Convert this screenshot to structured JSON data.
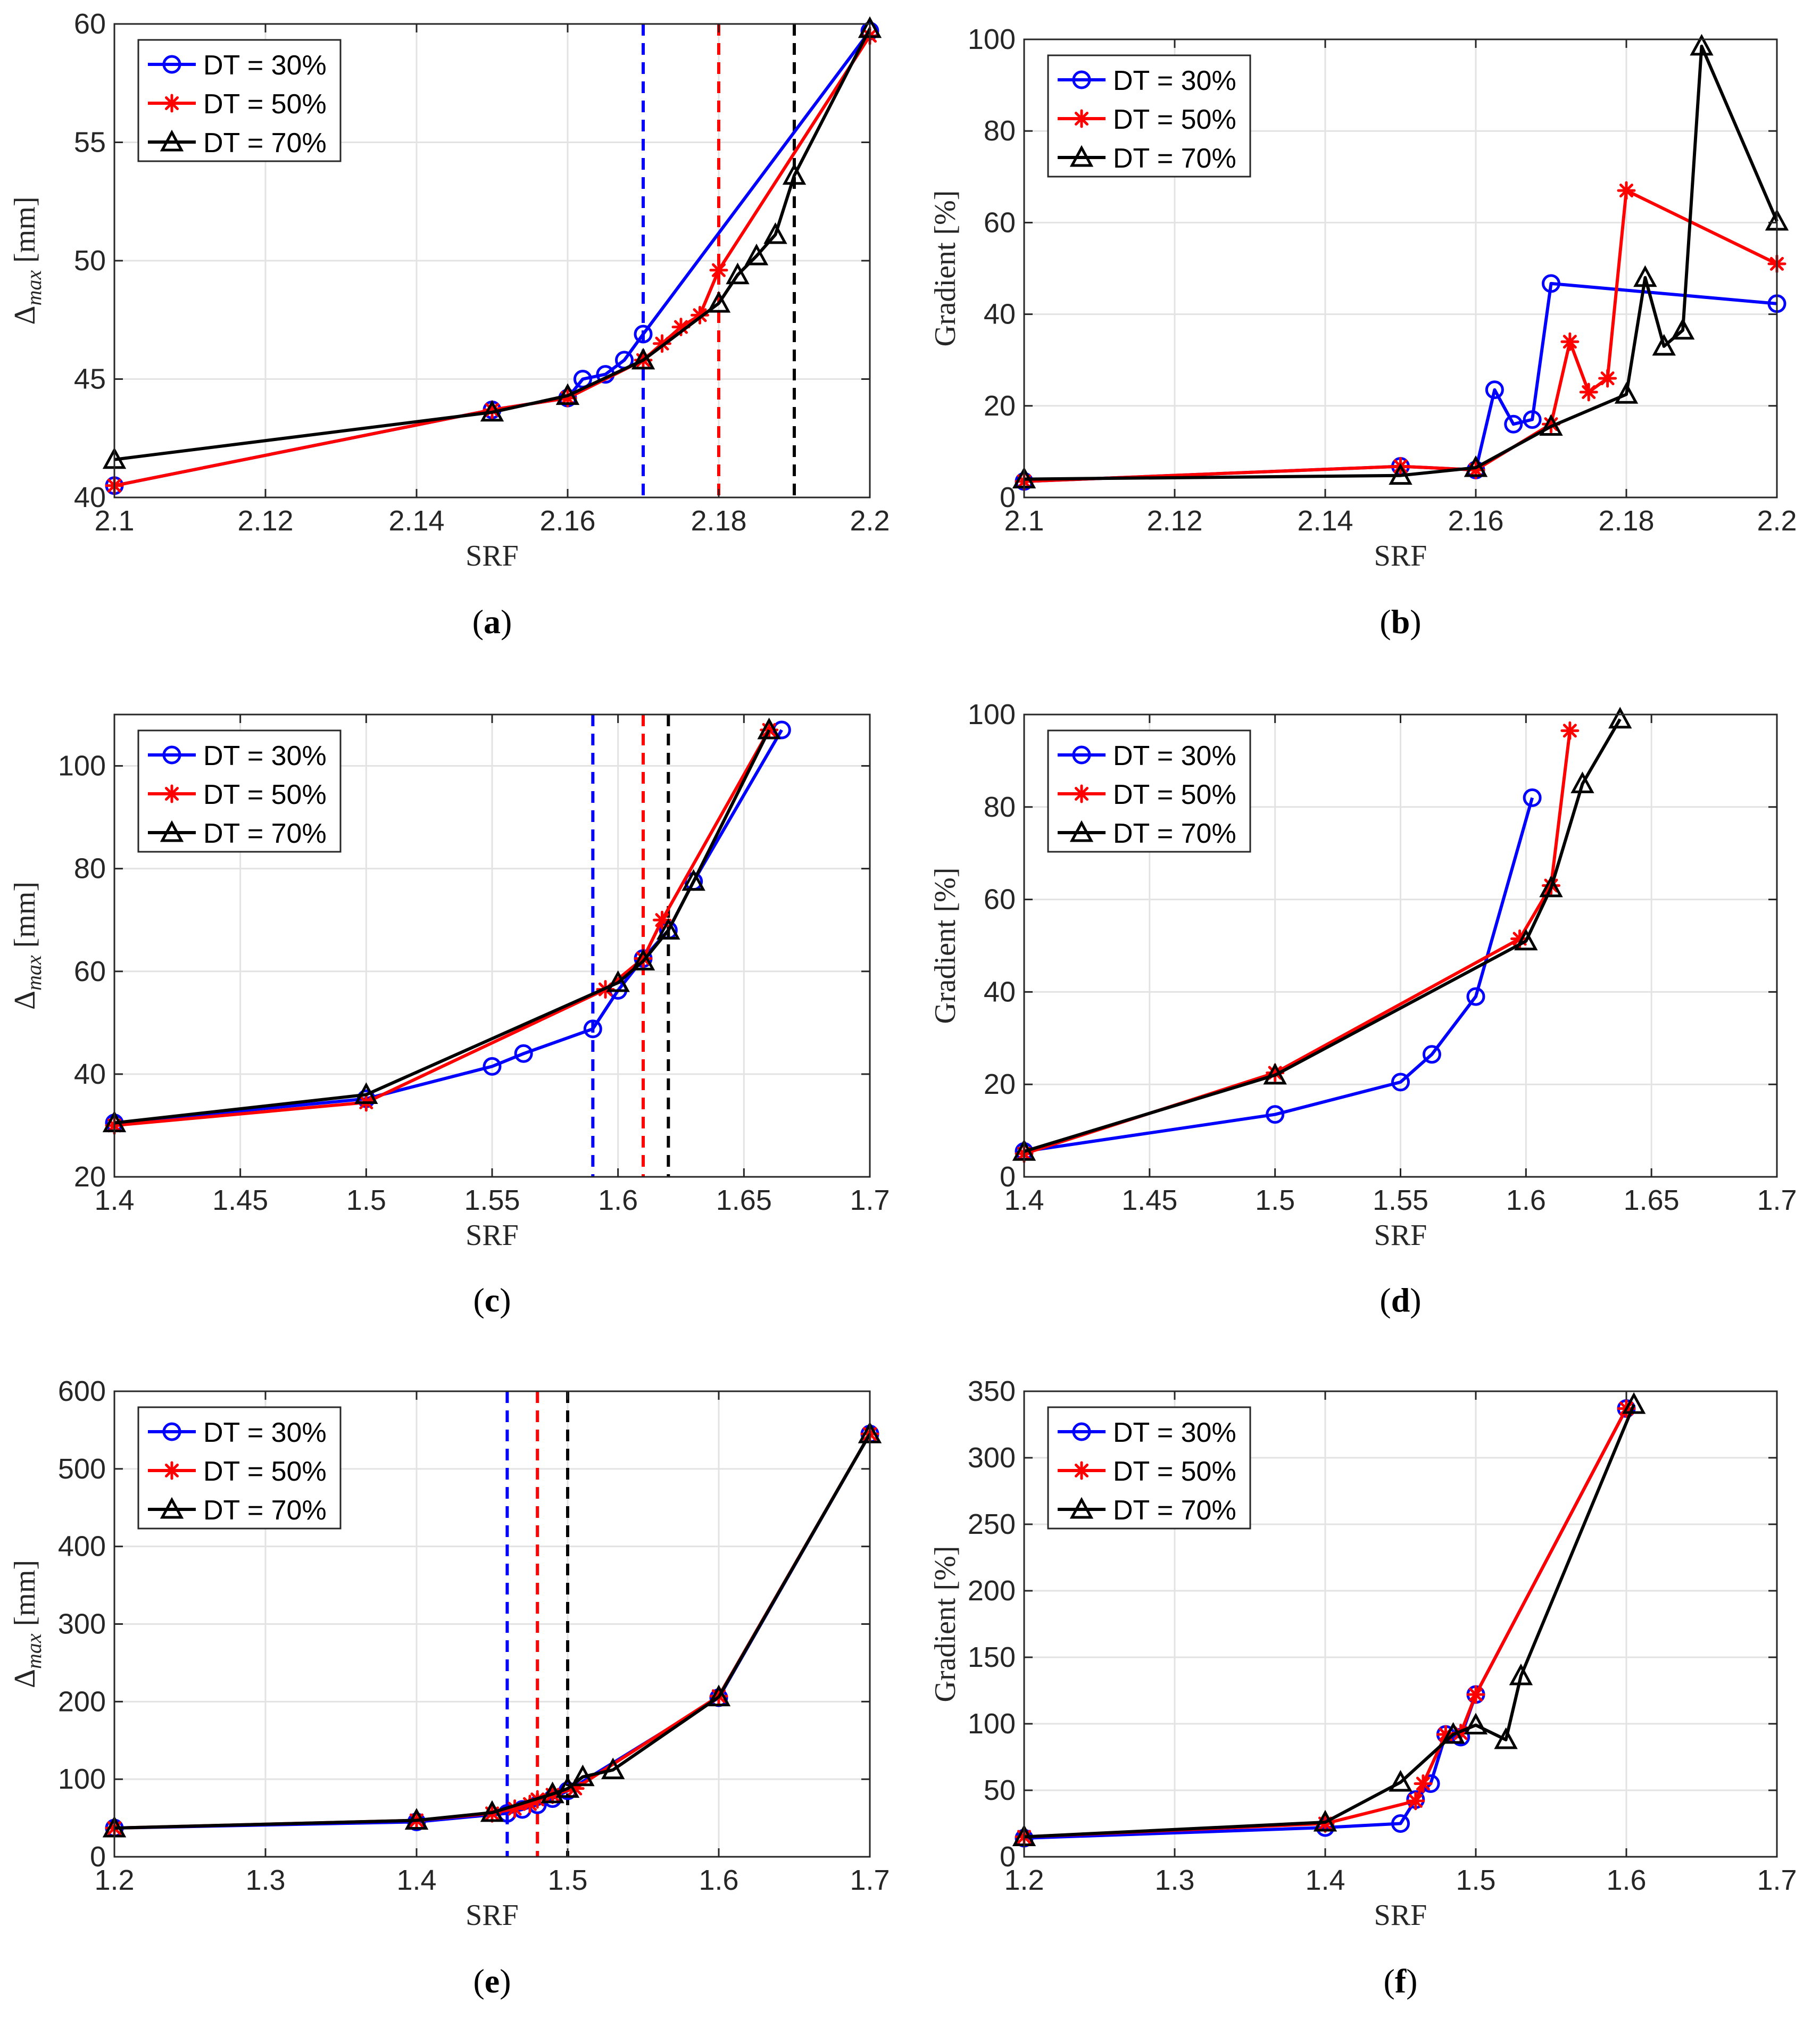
{
  "chart_data": [
    {
      "panel": "(a)",
      "type": "line",
      "xlabel": "SRF",
      "ylabel": "Δmax [mm]",
      "ylabel_main": "Δ",
      "ylabel_sub": "max",
      "ylabel_unit": " [mm]",
      "xlim": [
        2.1,
        2.2
      ],
      "ylim": [
        40,
        60
      ],
      "xticks": [
        "2.1",
        "2.12",
        "2.14",
        "2.16",
        "2.18",
        "2.2"
      ],
      "xtick_values": [
        2.1,
        2.12,
        2.14,
        2.16,
        2.18,
        2.2
      ],
      "yticks": [
        "40",
        "45",
        "50",
        "55",
        "60"
      ],
      "ytick_values": [
        40,
        45,
        50,
        55,
        60
      ],
      "legend": [
        "DT = 30%",
        "DT = 50%",
        "DT = 70%"
      ],
      "legend_position": "top-left",
      "vlines": [
        {
          "x": 2.17,
          "color": "#0000ff"
        },
        {
          "x": 2.18,
          "color": "#ff0000"
        },
        {
          "x": 2.19,
          "color": "#000000"
        }
      ],
      "series": [
        {
          "name": "DT = 30%",
          "color": "#0000ff",
          "marker": "circle",
          "x": [
            2.1,
            2.15,
            2.16,
            2.162,
            2.165,
            2.1675,
            2.17,
            2.2
          ],
          "y": [
            40.5,
            43.7,
            44.2,
            45.0,
            45.2,
            45.8,
            46.9,
            59.7
          ]
        },
        {
          "name": "DT = 50%",
          "color": "#ff0000",
          "marker": "asterisk",
          "x": [
            2.1,
            2.15,
            2.16,
            2.17,
            2.1725,
            2.175,
            2.1775,
            2.18,
            2.2
          ],
          "y": [
            40.5,
            43.7,
            44.2,
            45.8,
            46.5,
            47.2,
            47.7,
            49.6,
            59.5
          ]
        },
        {
          "name": "DT = 70%",
          "color": "#000000",
          "marker": "triangle",
          "x": [
            2.1,
            2.15,
            2.16,
            2.17,
            2.18,
            2.1825,
            2.185,
            2.1875,
            2.19,
            2.2
          ],
          "y": [
            41.6,
            43.6,
            44.3,
            45.8,
            48.2,
            49.4,
            50.2,
            51.1,
            53.6,
            59.8
          ]
        }
      ]
    },
    {
      "panel": "(b)",
      "type": "line",
      "xlabel": "SRF",
      "ylabel": "Gradient [%]",
      "xlim": [
        2.1,
        2.2
      ],
      "ylim": [
        0,
        100
      ],
      "xticks": [
        "2.1",
        "2.12",
        "2.14",
        "2.16",
        "2.18",
        "2.2"
      ],
      "xtick_values": [
        2.1,
        2.12,
        2.14,
        2.16,
        2.18,
        2.2
      ],
      "yticks": [
        "0",
        "20",
        "40",
        "60",
        "80",
        "100"
      ],
      "ytick_values": [
        0,
        20,
        40,
        60,
        80,
        100
      ],
      "legend": [
        "DT = 30%",
        "DT = 50%",
        "DT = 70%"
      ],
      "legend_position": "top-left",
      "vlines": [],
      "series": [
        {
          "name": "DT = 30%",
          "color": "#0000ff",
          "marker": "circle",
          "x": [
            2.1,
            2.15,
            2.16,
            2.1625,
            2.165,
            2.1675,
            2.17,
            2.2
          ],
          "y": [
            3.5,
            6.8,
            6.0,
            23.5,
            16.0,
            17.0,
            46.7,
            42.3
          ]
        },
        {
          "name": "DT = 50%",
          "color": "#ff0000",
          "marker": "asterisk",
          "x": [
            2.1,
            2.15,
            2.16,
            2.17,
            2.1725,
            2.175,
            2.1775,
            2.18,
            2.2
          ],
          "y": [
            3.5,
            6.8,
            6.0,
            16.0,
            34.0,
            23.0,
            26.0,
            67.0,
            51.0
          ]
        },
        {
          "name": "DT = 70%",
          "color": "#000000",
          "marker": "triangle",
          "x": [
            2.1,
            2.15,
            2.16,
            2.17,
            2.18,
            2.1825,
            2.185,
            2.1875,
            2.19,
            2.2
          ],
          "y": [
            4.0,
            4.8,
            6.5,
            15.5,
            22.5,
            48.0,
            33.0,
            36.5,
            98.5,
            60.3
          ]
        }
      ]
    },
    {
      "panel": "(c)",
      "type": "line",
      "xlabel": "SRF",
      "ylabel": "Δmax [mm]",
      "ylabel_main": "Δ",
      "ylabel_sub": "max",
      "ylabel_unit": " [mm]",
      "xlim": [
        1.4,
        1.7
      ],
      "ylim": [
        20,
        110
      ],
      "xticks": [
        "1.4",
        "1.45",
        "1.5",
        "1.55",
        "1.6",
        "1.65",
        "1.7"
      ],
      "xtick_values": [
        1.4,
        1.45,
        1.5,
        1.55,
        1.6,
        1.65,
        1.7
      ],
      "yticks": [
        "20",
        "40",
        "60",
        "80",
        "100"
      ],
      "ytick_values": [
        20,
        40,
        60,
        80,
        100
      ],
      "legend": [
        "DT = 30%",
        "DT = 50%",
        "DT = 70%"
      ],
      "legend_position": "top-left",
      "vlines": [
        {
          "x": 1.59,
          "color": "#0000ff"
        },
        {
          "x": 1.61,
          "color": "#ff0000"
        },
        {
          "x": 1.62,
          "color": "#000000"
        }
      ],
      "series": [
        {
          "name": "DT = 30%",
          "color": "#0000ff",
          "marker": "circle",
          "x": [
            1.4,
            1.5,
            1.55,
            1.5625,
            1.59,
            1.6,
            1.61,
            1.62,
            1.63,
            1.665
          ],
          "y": [
            30.5,
            35.2,
            41.5,
            44.0,
            48.8,
            56.3,
            62.5,
            68.0,
            77.5,
            107.0
          ]
        },
        {
          "name": "DT = 50%",
          "color": "#ff0000",
          "marker": "asterisk",
          "x": [
            1.4,
            1.5,
            1.595,
            1.61,
            1.6175,
            1.66
          ],
          "y": [
            30.0,
            34.5,
            56.5,
            62.5,
            70.0,
            107.0
          ]
        },
        {
          "name": "DT = 70%",
          "color": "#000000",
          "marker": "triangle",
          "x": [
            1.4,
            1.5,
            1.6,
            1.61,
            1.62,
            1.63,
            1.66
          ],
          "y": [
            30.5,
            36.0,
            57.8,
            62.0,
            68.0,
            77.5,
            107.0
          ]
        }
      ]
    },
    {
      "panel": "(d)",
      "type": "line",
      "xlabel": "SRF",
      "ylabel": "Gradient [%]",
      "xlim": [
        1.4,
        1.7
      ],
      "ylim": [
        0,
        100
      ],
      "xticks": [
        "1.4",
        "1.45",
        "1.5",
        "1.55",
        "1.6",
        "1.65",
        "1.7"
      ],
      "xtick_values": [
        1.4,
        1.45,
        1.5,
        1.55,
        1.6,
        1.65,
        1.7
      ],
      "yticks": [
        "0",
        "20",
        "40",
        "60",
        "80",
        "100"
      ],
      "ytick_values": [
        0,
        20,
        40,
        60,
        80,
        100
      ],
      "legend": [
        "DT = 30%",
        "DT = 50%",
        "DT = 70%"
      ],
      "legend_position": "top-left",
      "vlines": [],
      "series": [
        {
          "name": "DT = 30%",
          "color": "#0000ff",
          "marker": "circle",
          "x": [
            1.4,
            1.5,
            1.55,
            1.5625,
            1.58,
            1.6025
          ],
          "y": [
            5.5,
            13.5,
            20.5,
            26.5,
            39.0,
            82.0
          ]
        },
        {
          "name": "DT = 50%",
          "color": "#ff0000",
          "marker": "asterisk",
          "x": [
            1.4,
            1.5,
            1.5975,
            1.61,
            1.6175
          ],
          "y": [
            5.0,
            22.5,
            51.5,
            63.0,
            96.5
          ]
        },
        {
          "name": "DT = 70%",
          "color": "#000000",
          "marker": "triangle",
          "x": [
            1.4,
            1.5,
            1.6,
            1.61,
            1.6225,
            1.6375
          ],
          "y": [
            5.5,
            22.0,
            51.0,
            62.5,
            85.0,
            99.0
          ]
        }
      ]
    },
    {
      "panel": "(e)",
      "type": "line",
      "xlabel": "SRF",
      "ylabel": "Δmax [mm]",
      "ylabel_main": "Δ",
      "ylabel_sub": "max",
      "ylabel_unit": " [mm]",
      "xlim": [
        1.2,
        1.7
      ],
      "ylim": [
        0,
        600
      ],
      "xticks": [
        "1.2",
        "1.3",
        "1.4",
        "1.5",
        "1.6",
        "1.7"
      ],
      "xtick_values": [
        1.2,
        1.3,
        1.4,
        1.5,
        1.6,
        1.7
      ],
      "yticks": [
        "0",
        "100",
        "200",
        "300",
        "400",
        "500",
        "600"
      ],
      "ytick_values": [
        0,
        100,
        200,
        300,
        400,
        500,
        600
      ],
      "legend": [
        "DT = 30%",
        "DT = 50%",
        "DT = 70%"
      ],
      "legend_position": "top-left",
      "vlines": [
        {
          "x": 1.46,
          "color": "#0000ff"
        },
        {
          "x": 1.48,
          "color": "#ff0000"
        },
        {
          "x": 1.5,
          "color": "#000000"
        }
      ],
      "series": [
        {
          "name": "DT = 30%",
          "color": "#0000ff",
          "marker": "circle",
          "x": [
            1.2,
            1.4,
            1.46,
            1.47,
            1.48,
            1.49,
            1.5,
            1.6,
            1.7
          ],
          "y": [
            37,
            45,
            56,
            61,
            67,
            75,
            85,
            205,
            545
          ]
        },
        {
          "name": "DT = 50%",
          "color": "#ff0000",
          "marker": "asterisk",
          "x": [
            1.2,
            1.4,
            1.45,
            1.465,
            1.475,
            1.48,
            1.49,
            1.505,
            1.6,
            1.7
          ],
          "y": [
            37,
            47,
            56,
            62,
            68,
            74,
            80,
            88,
            207,
            545
          ]
        },
        {
          "name": "DT = 70%",
          "color": "#000000",
          "marker": "triangle",
          "x": [
            1.2,
            1.4,
            1.45,
            1.49,
            1.5,
            1.51,
            1.53,
            1.6,
            1.7
          ],
          "y": [
            37,
            47,
            57,
            81,
            88,
            103,
            112,
            206,
            545
          ]
        }
      ]
    },
    {
      "panel": "(f)",
      "type": "line",
      "xlabel": "SRF",
      "ylabel": "Gradient [%]",
      "xlim": [
        1.2,
        1.7
      ],
      "ylim": [
        0,
        350
      ],
      "xticks": [
        "1.2",
        "1.3",
        "1.4",
        "1.5",
        "1.6",
        "1.7"
      ],
      "xtick_values": [
        1.2,
        1.3,
        1.4,
        1.5,
        1.6,
        1.7
      ],
      "yticks": [
        "0",
        "50",
        "100",
        "150",
        "200",
        "250",
        "300",
        "350"
      ],
      "ytick_values": [
        0,
        50,
        100,
        150,
        200,
        250,
        300,
        350
      ],
      "legend": [
        "DT = 30%",
        "DT = 50%",
        "DT = 70%"
      ],
      "legend_position": "top-left",
      "vlines": [],
      "series": [
        {
          "name": "DT = 30%",
          "color": "#0000ff",
          "marker": "circle",
          "x": [
            1.2,
            1.4,
            1.45,
            1.46,
            1.47,
            1.48,
            1.49,
            1.5,
            1.6
          ],
          "y": [
            14,
            22,
            25,
            43,
            55,
            92,
            90,
            122,
            337
          ]
        },
        {
          "name": "DT = 50%",
          "color": "#ff0000",
          "marker": "asterisk",
          "x": [
            1.2,
            1.4,
            1.46,
            1.465,
            1.48,
            1.49,
            1.5,
            1.6
          ],
          "y": [
            15,
            25,
            42,
            55,
            92,
            93,
            122,
            337
          ]
        },
        {
          "name": "DT = 70%",
          "color": "#000000",
          "marker": "triangle",
          "x": [
            1.2,
            1.4,
            1.45,
            1.485,
            1.5,
            1.52,
            1.53,
            1.605
          ],
          "y": [
            15,
            26,
            56,
            92,
            99,
            88,
            136,
            340
          ]
        }
      ]
    }
  ]
}
